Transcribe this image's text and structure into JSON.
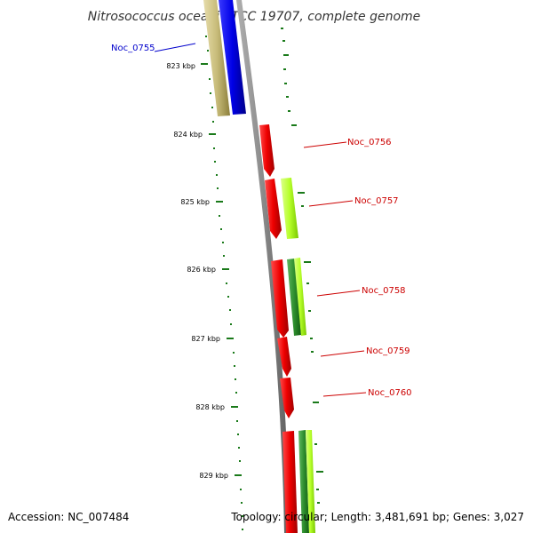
{
  "title": "Nitrosococcus oceani ATCC 19707, complete genome",
  "footer": {
    "accession": "Accession: NC_007484",
    "topology": "Topology: circular; Length: 3,481,691 bp; Genes: 3,027"
  },
  "scale": {
    "ticks": [
      "823 kbp",
      "824 kbp",
      "825 kbp",
      "826 kbp",
      "827 kbp",
      "828 kbp",
      "829 kbp"
    ]
  },
  "genes": [
    {
      "name": "Noc_0755",
      "color": "#0000cc"
    },
    {
      "name": "Noc_0756",
      "color": "#cc0000"
    },
    {
      "name": "Noc_0757",
      "color": "#cc0000"
    },
    {
      "name": "Noc_0758",
      "color": "#cc0000"
    },
    {
      "name": "Noc_0759",
      "color": "#cc0000"
    },
    {
      "name": "Noc_0760",
      "color": "#cc0000"
    }
  ],
  "colors": {
    "backbone": "#888888",
    "tick": "#1a7a1a",
    "forward_cds": "#e00000",
    "blue_cds": "#0a0af0",
    "olive_cds": "#c8bc7a",
    "lime_feature": "#b6ff2a",
    "dark_green_feature": "#2f8f2f"
  }
}
